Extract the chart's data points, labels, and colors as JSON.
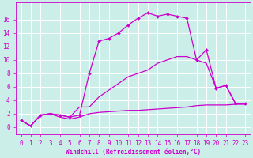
{
  "xlabel": "Windchill (Refroidissement éolien,°C)",
  "ylabel": "",
  "bg_color": "#cceee8",
  "line_color": "#cc00cc",
  "grid_color": "#ffffff",
  "xlim": [
    -0.5,
    23.5
  ],
  "ylim": [
    -1.0,
    18.5
  ],
  "xticks": [
    0,
    1,
    2,
    3,
    4,
    5,
    6,
    7,
    8,
    9,
    10,
    11,
    12,
    13,
    14,
    15,
    16,
    17,
    18,
    19,
    20,
    21,
    22,
    23
  ],
  "yticks": [
    0,
    2,
    4,
    6,
    8,
    10,
    12,
    14,
    16
  ],
  "curve1_x": [
    0,
    1,
    2,
    3,
    4,
    5,
    6,
    7,
    8,
    9,
    10,
    11,
    12,
    13,
    14,
    15,
    16,
    17,
    18,
    19,
    20,
    21,
    22,
    23
  ],
  "curve1_y": [
    1.0,
    0.2,
    1.8,
    2.0,
    1.8,
    1.5,
    1.8,
    8.0,
    12.8,
    13.2,
    14.0,
    15.2,
    16.2,
    17.0,
    16.5,
    16.8,
    16.5,
    16.2,
    10.0,
    11.5,
    5.8,
    6.2,
    3.5,
    3.5
  ],
  "curve2_x": [
    0,
    1,
    2,
    3,
    4,
    5,
    6,
    7,
    8,
    9,
    10,
    11,
    12,
    13,
    14,
    15,
    16,
    17,
    18,
    19,
    20,
    21,
    22,
    23
  ],
  "curve2_y": [
    1.0,
    0.2,
    1.8,
    2.0,
    1.8,
    1.5,
    3.0,
    3.0,
    4.5,
    5.5,
    6.5,
    7.5,
    8.0,
    8.5,
    9.5,
    10.0,
    10.5,
    10.5,
    10.0,
    9.5,
    5.8,
    6.2,
    3.5,
    3.5
  ],
  "curve3_x": [
    0,
    1,
    2,
    3,
    4,
    5,
    6,
    7,
    8,
    9,
    10,
    11,
    12,
    13,
    14,
    15,
    16,
    17,
    18,
    19,
    20,
    21,
    22,
    23
  ],
  "curve3_y": [
    1.0,
    0.2,
    1.8,
    2.0,
    1.5,
    1.2,
    1.5,
    2.0,
    2.2,
    2.3,
    2.4,
    2.5,
    2.5,
    2.6,
    2.7,
    2.8,
    2.9,
    3.0,
    3.2,
    3.3,
    3.3,
    3.3,
    3.4,
    3.4
  ],
  "tick_fontsize": 5.5,
  "xlabel_fontsize": 5.5
}
